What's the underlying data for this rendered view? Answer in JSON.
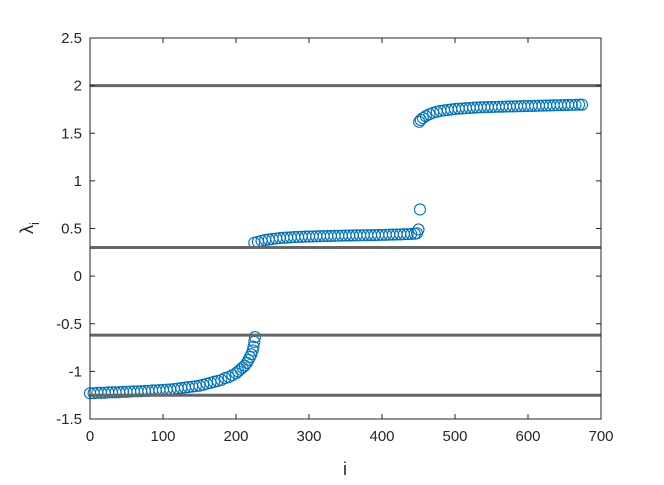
{
  "chart_data": {
    "type": "scatter",
    "title": "",
    "xlabel": "i",
    "ylabel_main": "λ",
    "ylabel_sub": "i",
    "xlim": [
      0,
      700
    ],
    "ylim": [
      -1.5,
      2.5
    ],
    "xticks": [
      0,
      100,
      200,
      300,
      400,
      500,
      600,
      700
    ],
    "yticks": [
      -1.5,
      -1,
      -0.5,
      0,
      0.5,
      1,
      1.5,
      2,
      2.5
    ],
    "xtick_labels": [
      "0",
      "100",
      "200",
      "300",
      "400",
      "500",
      "600",
      "700"
    ],
    "ytick_labels": [
      "-1.5",
      "-1",
      "-0.5",
      "0",
      "0.5",
      "1",
      "1.5",
      "2",
      "2.5"
    ],
    "grid": false,
    "hlines": [
      2.0,
      0.3,
      -0.62,
      -1.25
    ],
    "marker_color": "#0072BD",
    "line_color": "#666666",
    "series": [
      {
        "points": [
          [
            0,
            -1.23
          ],
          [
            5,
            -1.23
          ],
          [
            10,
            -1.225
          ],
          [
            15,
            -1.225
          ],
          [
            20,
            -1.225
          ],
          [
            25,
            -1.22
          ],
          [
            30,
            -1.22
          ],
          [
            35,
            -1.22
          ],
          [
            40,
            -1.218
          ],
          [
            45,
            -1.215
          ],
          [
            50,
            -1.215
          ],
          [
            55,
            -1.212
          ],
          [
            60,
            -1.21
          ],
          [
            65,
            -1.21
          ],
          [
            70,
            -1.208
          ],
          [
            75,
            -1.205
          ],
          [
            80,
            -1.205
          ],
          [
            85,
            -1.2
          ],
          [
            90,
            -1.2
          ],
          [
            95,
            -1.197
          ],
          [
            100,
            -1.195
          ],
          [
            105,
            -1.192
          ],
          [
            110,
            -1.19
          ],
          [
            115,
            -1.185
          ],
          [
            120,
            -1.18
          ],
          [
            125,
            -1.175
          ],
          [
            130,
            -1.17
          ],
          [
            135,
            -1.165
          ],
          [
            140,
            -1.16
          ],
          [
            145,
            -1.155
          ],
          [
            150,
            -1.15
          ],
          [
            155,
            -1.14
          ],
          [
            160,
            -1.13
          ],
          [
            165,
            -1.12
          ],
          [
            170,
            -1.11
          ],
          [
            175,
            -1.1
          ],
          [
            180,
            -1.09
          ],
          [
            185,
            -1.07
          ],
          [
            190,
            -1.06
          ],
          [
            195,
            -1.04
          ],
          [
            200,
            -1.02
          ],
          [
            203,
            -1.0
          ],
          [
            206,
            -0.98
          ],
          [
            209,
            -0.96
          ],
          [
            212,
            -0.94
          ],
          [
            215,
            -0.91
          ],
          [
            217,
            -0.88
          ],
          [
            219,
            -0.85
          ],
          [
            221,
            -0.82
          ],
          [
            223,
            -0.78
          ],
          [
            224,
            -0.74
          ],
          [
            225,
            -0.69
          ],
          [
            226,
            -0.64
          ],
          [
            225,
            0.35
          ],
          [
            230,
            0.36
          ],
          [
            235,
            0.37
          ],
          [
            240,
            0.38
          ],
          [
            245,
            0.385
          ],
          [
            250,
            0.39
          ],
          [
            255,
            0.395
          ],
          [
            260,
            0.4
          ],
          [
            265,
            0.402
          ],
          [
            270,
            0.405
          ],
          [
            275,
            0.407
          ],
          [
            280,
            0.41
          ],
          [
            285,
            0.412
          ],
          [
            290,
            0.413
          ],
          [
            295,
            0.415
          ],
          [
            300,
            0.416
          ],
          [
            305,
            0.417
          ],
          [
            310,
            0.418
          ],
          [
            315,
            0.419
          ],
          [
            320,
            0.42
          ],
          [
            325,
            0.421
          ],
          [
            330,
            0.422
          ],
          [
            335,
            0.423
          ],
          [
            340,
            0.424
          ],
          [
            345,
            0.425
          ],
          [
            350,
            0.426
          ],
          [
            355,
            0.426
          ],
          [
            360,
            0.427
          ],
          [
            365,
            0.428
          ],
          [
            370,
            0.428
          ],
          [
            375,
            0.429
          ],
          [
            380,
            0.43
          ],
          [
            385,
            0.43
          ],
          [
            390,
            0.431
          ],
          [
            395,
            0.432
          ],
          [
            400,
            0.433
          ],
          [
            405,
            0.434
          ],
          [
            410,
            0.435
          ],
          [
            415,
            0.436
          ],
          [
            420,
            0.437
          ],
          [
            425,
            0.438
          ],
          [
            430,
            0.44
          ],
          [
            435,
            0.441
          ],
          [
            440,
            0.443
          ],
          [
            445,
            0.445
          ],
          [
            448,
            0.45
          ],
          [
            450,
            0.49
          ],
          [
            452,
            0.7
          ],
          [
            451,
            1.62
          ],
          [
            453,
            1.64
          ],
          [
            456,
            1.66
          ],
          [
            460,
            1.68
          ],
          [
            465,
            1.7
          ],
          [
            470,
            1.715
          ],
          [
            475,
            1.725
          ],
          [
            480,
            1.735
          ],
          [
            485,
            1.74
          ],
          [
            490,
            1.745
          ],
          [
            495,
            1.75
          ],
          [
            500,
            1.755
          ],
          [
            505,
            1.758
          ],
          [
            510,
            1.76
          ],
          [
            515,
            1.763
          ],
          [
            520,
            1.765
          ],
          [
            525,
            1.768
          ],
          [
            530,
            1.77
          ],
          [
            535,
            1.772
          ],
          [
            540,
            1.774
          ],
          [
            545,
            1.775
          ],
          [
            550,
            1.776
          ],
          [
            555,
            1.777
          ],
          [
            560,
            1.778
          ],
          [
            565,
            1.779
          ],
          [
            570,
            1.78
          ],
          [
            575,
            1.781
          ],
          [
            580,
            1.782
          ],
          [
            585,
            1.783
          ],
          [
            590,
            1.784
          ],
          [
            595,
            1.785
          ],
          [
            600,
            1.786
          ],
          [
            605,
            1.787
          ],
          [
            610,
            1.788
          ],
          [
            615,
            1.789
          ],
          [
            620,
            1.79
          ],
          [
            625,
            1.791
          ],
          [
            630,
            1.792
          ],
          [
            635,
            1.793
          ],
          [
            640,
            1.794
          ],
          [
            645,
            1.795
          ],
          [
            650,
            1.796
          ],
          [
            655,
            1.797
          ],
          [
            660,
            1.798
          ],
          [
            665,
            1.799
          ],
          [
            670,
            1.8
          ],
          [
            674,
            1.8
          ]
        ]
      }
    ]
  }
}
